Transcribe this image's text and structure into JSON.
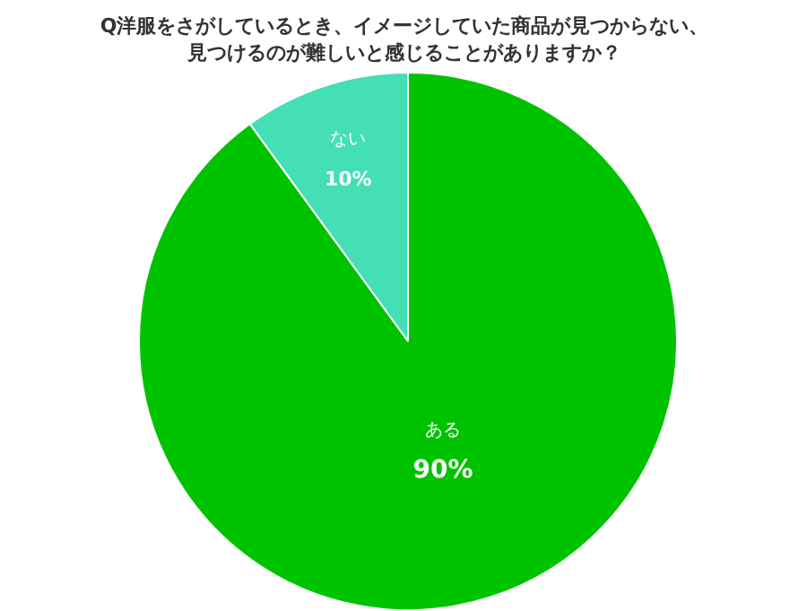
{
  "chart_data": {
    "type": "pie",
    "title": "Q洋服をさがしているとき、イメージしていた商品が見つからない、見つけるのが難しいと感じることがありますか？",
    "categories": [
      "ない",
      "ある"
    ],
    "values": [
      10,
      90
    ],
    "value_labels": [
      "10%",
      "90%"
    ],
    "colors": [
      "#44dfb4",
      "#00c300"
    ]
  }
}
